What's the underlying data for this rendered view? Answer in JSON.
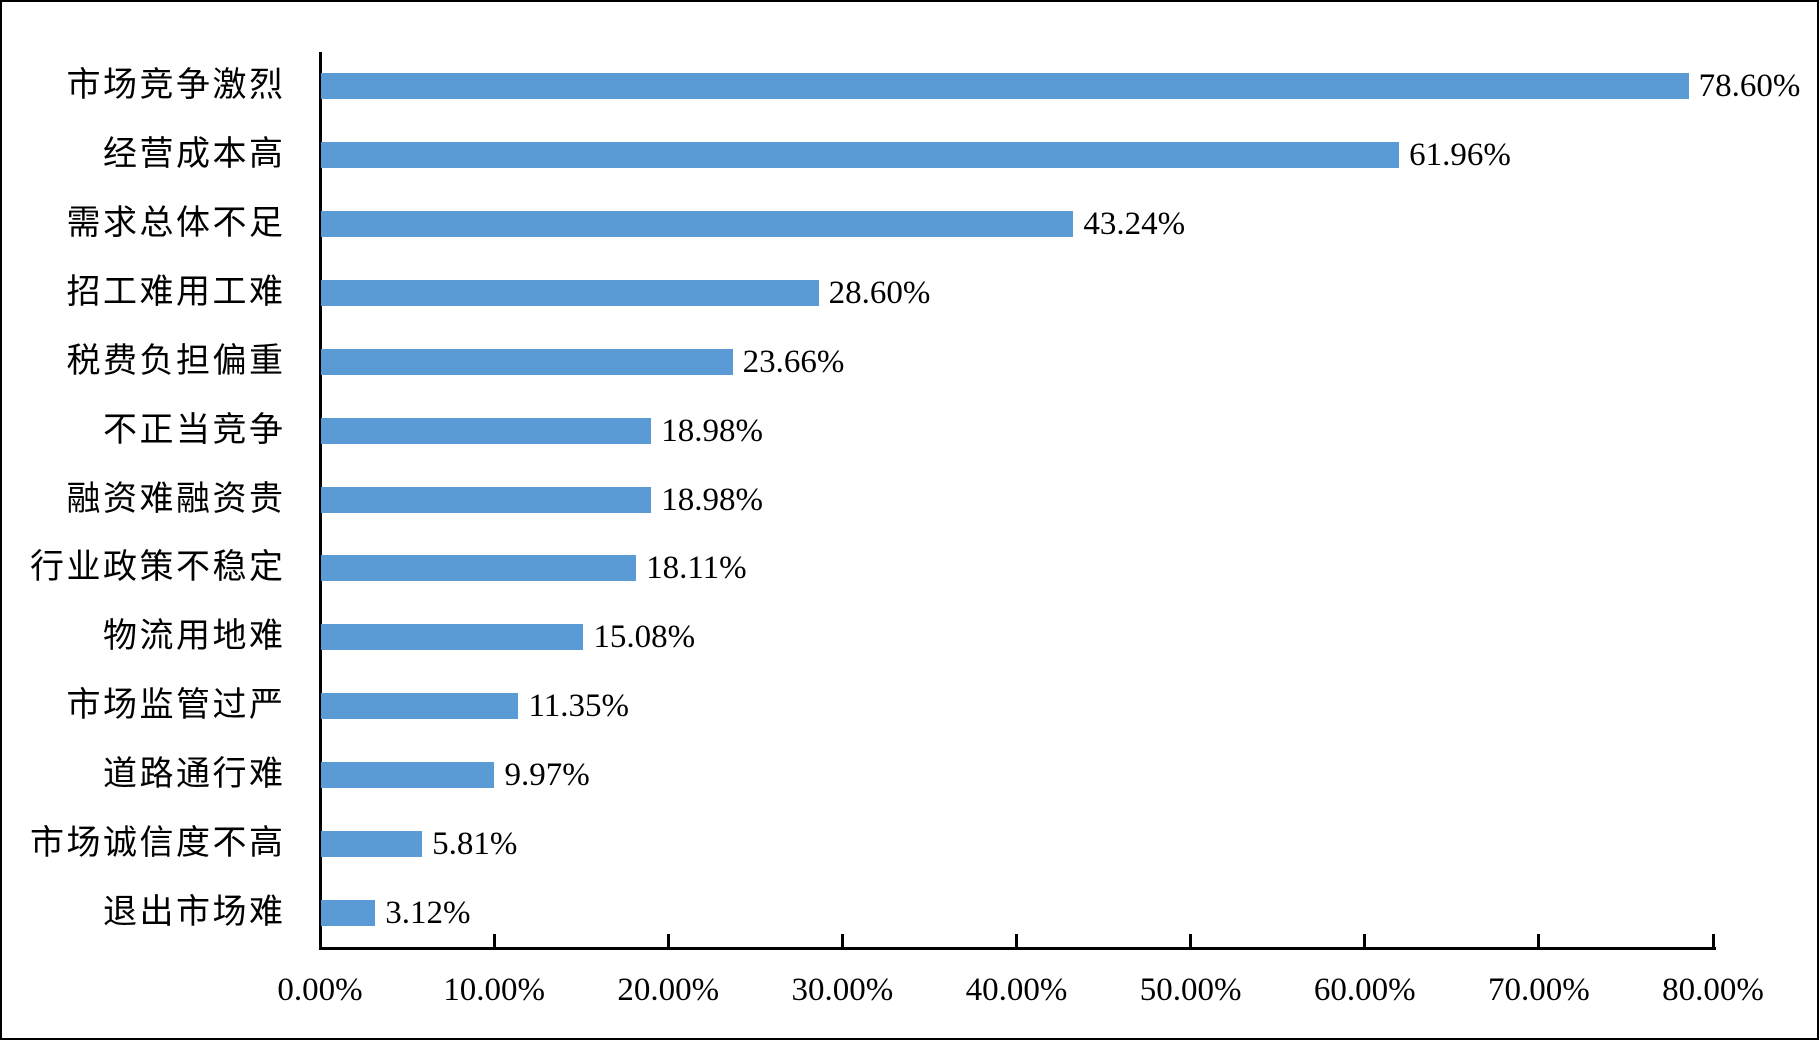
{
  "chart_data": {
    "type": "bar",
    "orientation": "horizontal",
    "title": "",
    "categories": [
      "市场竞争激烈",
      "经营成本高",
      "需求总体不足",
      "招工难用工难",
      "税费负担偏重",
      "不正当竞争",
      "融资难融资贵",
      "行业政策不稳定",
      "物流用地难",
      "市场监管过严",
      "道路通行难",
      "市场诚信度不高",
      "退出市场难"
    ],
    "values": [
      78.6,
      61.96,
      43.24,
      28.6,
      23.66,
      18.98,
      18.98,
      18.11,
      15.08,
      11.35,
      9.97,
      5.81,
      3.12
    ],
    "data_labels": [
      "78.60%",
      "61.96%",
      "43.24%",
      "28.60%",
      "23.66%",
      "18.98%",
      "18.98%",
      "18.11%",
      "15.08%",
      "11.35%",
      "9.97%",
      "5.81%",
      "3.12%"
    ],
    "xlim": [
      0,
      80
    ],
    "x_tick_labels": [
      "0.00%",
      "10.00%",
      "20.00%",
      "30.00%",
      "40.00%",
      "50.00%",
      "60.00%",
      "70.00%",
      "80.00%"
    ],
    "x_tick_values": [
      0,
      10,
      20,
      30,
      40,
      50,
      60,
      70,
      80
    ],
    "bar_color": "#5B9BD5",
    "axis_color": "#000000",
    "text_color": "#000000",
    "background_color": "#FFFFFF",
    "grid": false,
    "legend": false,
    "data_label_position": "outside-end",
    "tick_direction": "inside"
  }
}
